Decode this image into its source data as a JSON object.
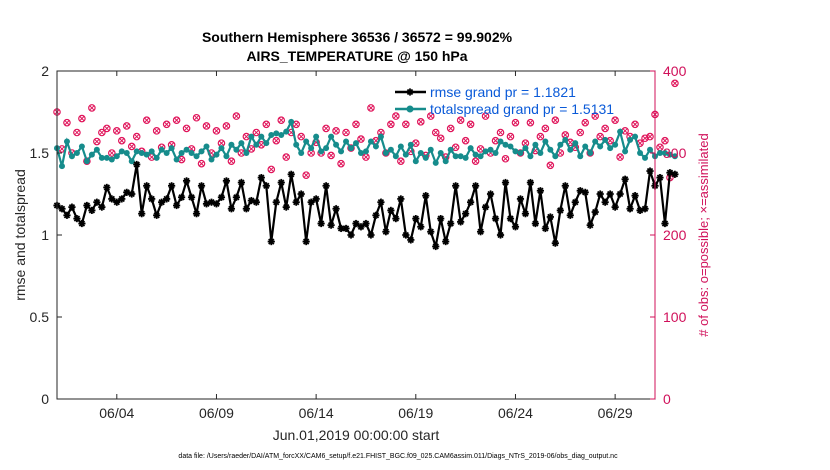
{
  "chart_data": {
    "type": "line",
    "title": "Southern Hemisphere 36536 / 36572 = 99.902%",
    "subtitle": "AIRS_TEMPERATURE @ 150 hPa",
    "xlabel": "Jun.01,2019 00:00:00 start",
    "ylabel": "rmse and totalspread",
    "ylabel_right": "# of obs: o=possible; ×=assimilated",
    "x_range": [
      1,
      31
    ],
    "ylim": [
      0,
      2
    ],
    "ylim_right": [
      0,
      400
    ],
    "x_ticks": [
      4,
      9,
      14,
      19,
      24,
      29
    ],
    "x_tick_labels": [
      "06/04",
      "06/09",
      "06/14",
      "06/19",
      "06/24",
      "06/29"
    ],
    "y_ticks": [
      0,
      0.5,
      1,
      1.5,
      2
    ],
    "y_tick_labels": [
      "0",
      "0.5",
      "1",
      "1.5",
      "2"
    ],
    "y_right_ticks": [
      0,
      100,
      200,
      300,
      400
    ],
    "y_right_tick_labels": [
      "0",
      "100",
      "200",
      "300",
      "400"
    ],
    "grid": false,
    "legend_position": "top-right",
    "colors": {
      "rmse": "#000000",
      "spread": "#168c8c",
      "obs": "#e0145a",
      "right_axis": "#d0105a",
      "legend_text": "#0a5ad8"
    },
    "series": [
      {
        "name": "rmse grand pr = 1.1821",
        "axis": "left",
        "x_start": 1.0,
        "x_step": 0.25,
        "values": [
          1.18,
          1.16,
          1.12,
          1.17,
          1.1,
          1.07,
          1.18,
          1.15,
          1.2,
          1.17,
          1.29,
          1.22,
          1.2,
          1.22,
          1.26,
          1.25,
          1.43,
          1.13,
          1.3,
          1.22,
          1.12,
          1.2,
          1.22,
          1.3,
          1.18,
          1.23,
          1.33,
          1.23,
          1.13,
          1.3,
          1.19,
          1.2,
          1.19,
          1.23,
          1.33,
          1.16,
          1.23,
          1.32,
          1.16,
          1.21,
          1.2,
          1.35,
          1.3,
          0.96,
          1.2,
          1.32,
          1.17,
          1.37,
          1.2,
          1.25,
          0.96,
          1.2,
          1.22,
          1.07,
          1.3,
          1.06,
          1.16,
          1.04,
          1.04,
          1.0,
          1.07,
          1.05,
          1.07,
          1.0,
          1.12,
          1.2,
          1.02,
          1.15,
          1.1,
          1.22,
          1.0,
          0.97,
          1.1,
          1.05,
          1.24,
          1.02,
          0.93,
          1.1,
          0.96,
          1.07,
          1.3,
          1.08,
          1.13,
          1.2,
          1.3,
          1.02,
          1.17,
          1.25,
          1.1,
          1.0,
          1.32,
          1.1,
          1.05,
          1.22,
          1.13,
          1.32,
          1.07,
          1.27,
          1.04,
          1.11,
          0.95,
          1.15,
          1.3,
          1.12,
          1.2,
          1.27,
          1.26,
          1.06,
          1.14,
          1.25,
          1.2,
          1.25,
          1.17,
          1.25,
          1.34,
          1.16,
          1.24,
          1.15,
          1.16,
          1.39,
          1.3,
          1.35,
          1.07,
          1.38,
          1.37
        ]
      },
      {
        "name": "totalspread grand pr = 1.5131",
        "axis": "left",
        "x_start": 1.0,
        "x_step": 0.25,
        "values": [
          1.53,
          1.42,
          1.57,
          1.48,
          1.5,
          1.54,
          1.45,
          1.49,
          1.52,
          1.47,
          1.47,
          1.46,
          1.48,
          1.51,
          1.5,
          1.45,
          1.51,
          1.5,
          1.49,
          1.51,
          1.47,
          1.52,
          1.5,
          1.53,
          1.46,
          1.5,
          1.52,
          1.5,
          1.48,
          1.51,
          1.54,
          1.46,
          1.49,
          1.53,
          1.48,
          1.55,
          1.52,
          1.56,
          1.5,
          1.6,
          1.55,
          1.6,
          1.56,
          1.61,
          1.62,
          1.61,
          1.63,
          1.69,
          1.55,
          1.5,
          1.57,
          1.53,
          1.6,
          1.51,
          1.53,
          1.6,
          1.55,
          1.51,
          1.57,
          1.53,
          1.56,
          1.5,
          1.51,
          1.57,
          1.54,
          1.6,
          1.5,
          1.52,
          1.48,
          1.54,
          1.49,
          1.55,
          1.45,
          1.5,
          1.47,
          1.52,
          1.44,
          1.5,
          1.45,
          1.52,
          1.48,
          1.48,
          1.47,
          1.53,
          1.49,
          1.48,
          1.51,
          1.52,
          1.5,
          1.57,
          1.55,
          1.54,
          1.51,
          1.5,
          1.53,
          1.48,
          1.55,
          1.5,
          1.57,
          1.52,
          1.48,
          1.55,
          1.58,
          1.52,
          1.56,
          1.48,
          1.54,
          1.5,
          1.57,
          1.54,
          1.58,
          1.53,
          1.55,
          1.63,
          1.51,
          1.58,
          1.6,
          1.5,
          1.47,
          1.52,
          1.48,
          1.5,
          1.5,
          1.49,
          1.48
        ]
      },
      {
        "axis": "right",
        "x_start": 1.0,
        "x_step": 0.25,
        "values": [
          350,
          305,
          337,
          300,
          325,
          342,
          290,
          355,
          314,
          325,
          330,
          300,
          327,
          315,
          333,
          308,
          320,
          302,
          340,
          295,
          327,
          307,
          335,
          310,
          340,
          292,
          330,
          305,
          343,
          287,
          333,
          300,
          327,
          312,
          333,
          290,
          345,
          300,
          320,
          305,
          325,
          310,
          335,
          280,
          315,
          340,
          295,
          325,
          335,
          320,
          273,
          300,
          313,
          300,
          330,
          297,
          327,
          287,
          325,
          306,
          335,
          317,
          295,
          355,
          315,
          325,
          300,
          335,
          345,
          290,
          335,
          302,
          312,
          338,
          297,
          345,
          325,
          318,
          295,
          330,
          307,
          340,
          315,
          335,
          290,
          305,
          345,
          300,
          315,
          325,
          293,
          320,
          337,
          300,
          312,
          337,
          303,
          320,
          330,
          285,
          340,
          300,
          322,
          313,
          307,
          325,
          337,
          300,
          345,
          320,
          330,
          315,
          340,
          295,
          327,
          320,
          335,
          312,
          318,
          320,
          347,
          307,
          315,
          270,
          385
        ]
      }
    ]
  },
  "footer": {
    "text": "data file: /Users/raeder/DAI/ATM_forcXX/CAM6_setup/f.e21.FHIST_BGC.f09_025.CAM6assim.011/Diags_NTrS_2019-06/obs_diag_output.nc"
  }
}
